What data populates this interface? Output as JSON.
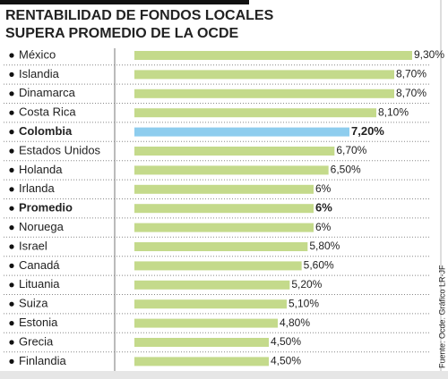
{
  "chart_data": {
    "type": "hbar",
    "title_lines": [
      "RENTABILIDAD DE FONDOS LOCALES",
      "SUPERA PROMEDIO DE LA OCDE"
    ],
    "categories": [
      "México",
      "Islandia",
      "Dinamarca",
      "Costa Rica",
      "Colombia",
      "Estados Unidos",
      "Holanda",
      "Irlanda",
      "Promedio",
      "Noruega",
      "Israel",
      "Canadá",
      "Lituania",
      "Suiza",
      "Estonia",
      "Grecia",
      "Finlandia"
    ],
    "values": [
      9.3,
      8.7,
      8.7,
      8.1,
      7.2,
      6.7,
      6.5,
      6,
      6,
      6,
      5.8,
      5.6,
      5.2,
      5.1,
      4.8,
      4.5,
      4.5
    ],
    "value_labels": [
      "9,30%",
      "8,70%",
      "8,70%",
      "8,10%",
      "7,20%",
      "6,70%",
      "6,50%",
      "6%",
      "6%",
      "6%",
      "5,80%",
      "5,60%",
      "5,20%",
      "5,10%",
      "4,80%",
      "4,50%",
      "4,50%"
    ],
    "colors": [
      "#c4da8b",
      "#c4da8b",
      "#c4da8b",
      "#c4da8b",
      "#8ecdee",
      "#c4da8b",
      "#c4da8b",
      "#c4da8b",
      "#c4da8b",
      "#c4da8b",
      "#c4da8b",
      "#c4da8b",
      "#c4da8b",
      "#c4da8b",
      "#c4da8b",
      "#c4da8b",
      "#c4da8b"
    ],
    "bold": [
      false,
      false,
      false,
      false,
      true,
      false,
      false,
      false,
      true,
      false,
      false,
      false,
      false,
      false,
      false,
      false,
      false
    ],
    "source": "Fuente: Ocde. Gráfico LR-JF"
  }
}
